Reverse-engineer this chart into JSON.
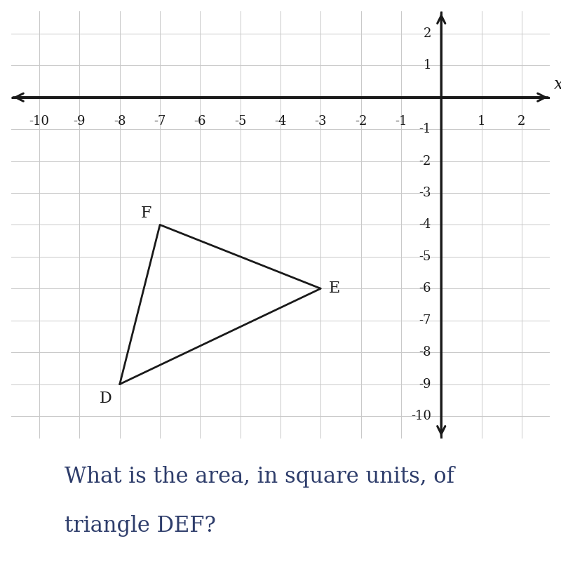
{
  "vertices": {
    "D": [
      -8,
      -9
    ],
    "E": [
      -3,
      -6
    ],
    "F": [
      -7,
      -4
    ]
  },
  "vertex_label_offsets": {
    "D": [
      -0.35,
      -0.45
    ],
    "E": [
      0.35,
      0.0
    ],
    "F": [
      -0.35,
      0.35
    ]
  },
  "xlim": [
    -10.7,
    2.7
  ],
  "ylim": [
    -10.7,
    2.7
  ],
  "x_ticks": [
    -10,
    -9,
    -8,
    -7,
    -6,
    -5,
    -4,
    -3,
    -2,
    -1,
    1,
    2
  ],
  "y_ticks": [
    -10,
    -9,
    -8,
    -7,
    -6,
    -5,
    -4,
    -3,
    -2,
    -1,
    1,
    2
  ],
  "grid_ticks": [
    -10,
    -9,
    -8,
    -7,
    -6,
    -5,
    -4,
    -3,
    -2,
    -1,
    0,
    1,
    2
  ],
  "triangle_color": "#1a1a1a",
  "triangle_linewidth": 2.0,
  "axis_color": "#1a1a1a",
  "grid_color": "#c8c8c8",
  "grid_linewidth": 0.7,
  "tick_fontsize": 13,
  "vertex_fontsize": 16,
  "x_label": "x",
  "x_label_fontsize": 17,
  "question_text_line1": "What is the area, in square units, of",
  "question_text_line2": "triangle DEF?",
  "question_fontsize": 22,
  "question_color": "#2e3d6b",
  "background_color": "#ffffff",
  "figure_width": 8.0,
  "figure_height": 8.01
}
